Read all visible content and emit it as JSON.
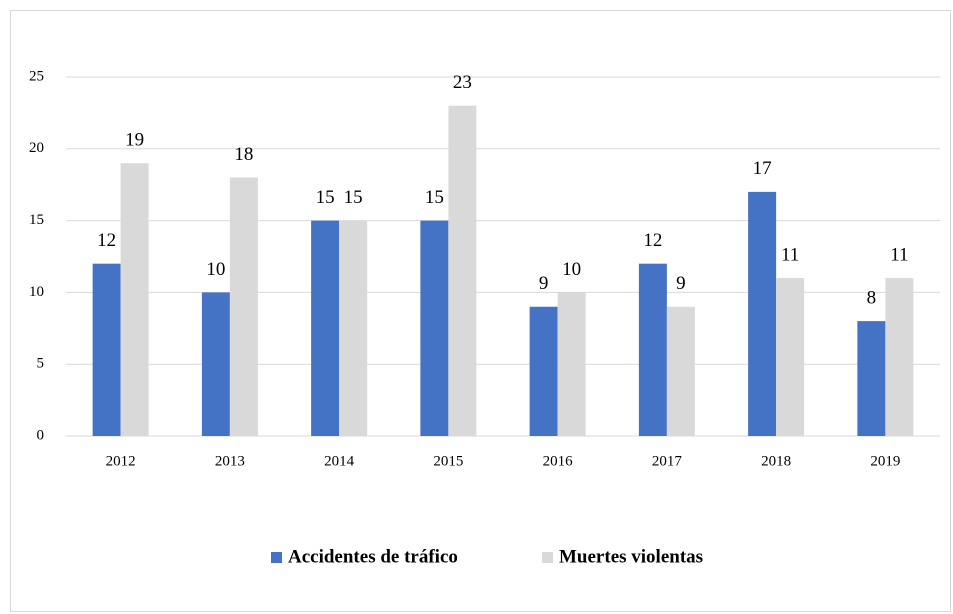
{
  "chart_data": {
    "type": "bar",
    "categories": [
      "2012",
      "2013",
      "2014",
      "2015",
      "2016",
      "2017",
      "2018",
      "2019"
    ],
    "series": [
      {
        "name": "Accidentes de tráfico",
        "color": "#4472c4",
        "values": [
          12,
          10,
          15,
          15,
          9,
          12,
          17,
          8
        ]
      },
      {
        "name": "Muertes violentas",
        "color": "#d9d9d9",
        "values": [
          19,
          18,
          15,
          23,
          10,
          9,
          11,
          11
        ]
      }
    ],
    "ylim": [
      0,
      25
    ],
    "yticks": [
      0,
      5,
      10,
      15,
      20,
      25
    ],
    "grid": true,
    "legend": "bottom"
  }
}
